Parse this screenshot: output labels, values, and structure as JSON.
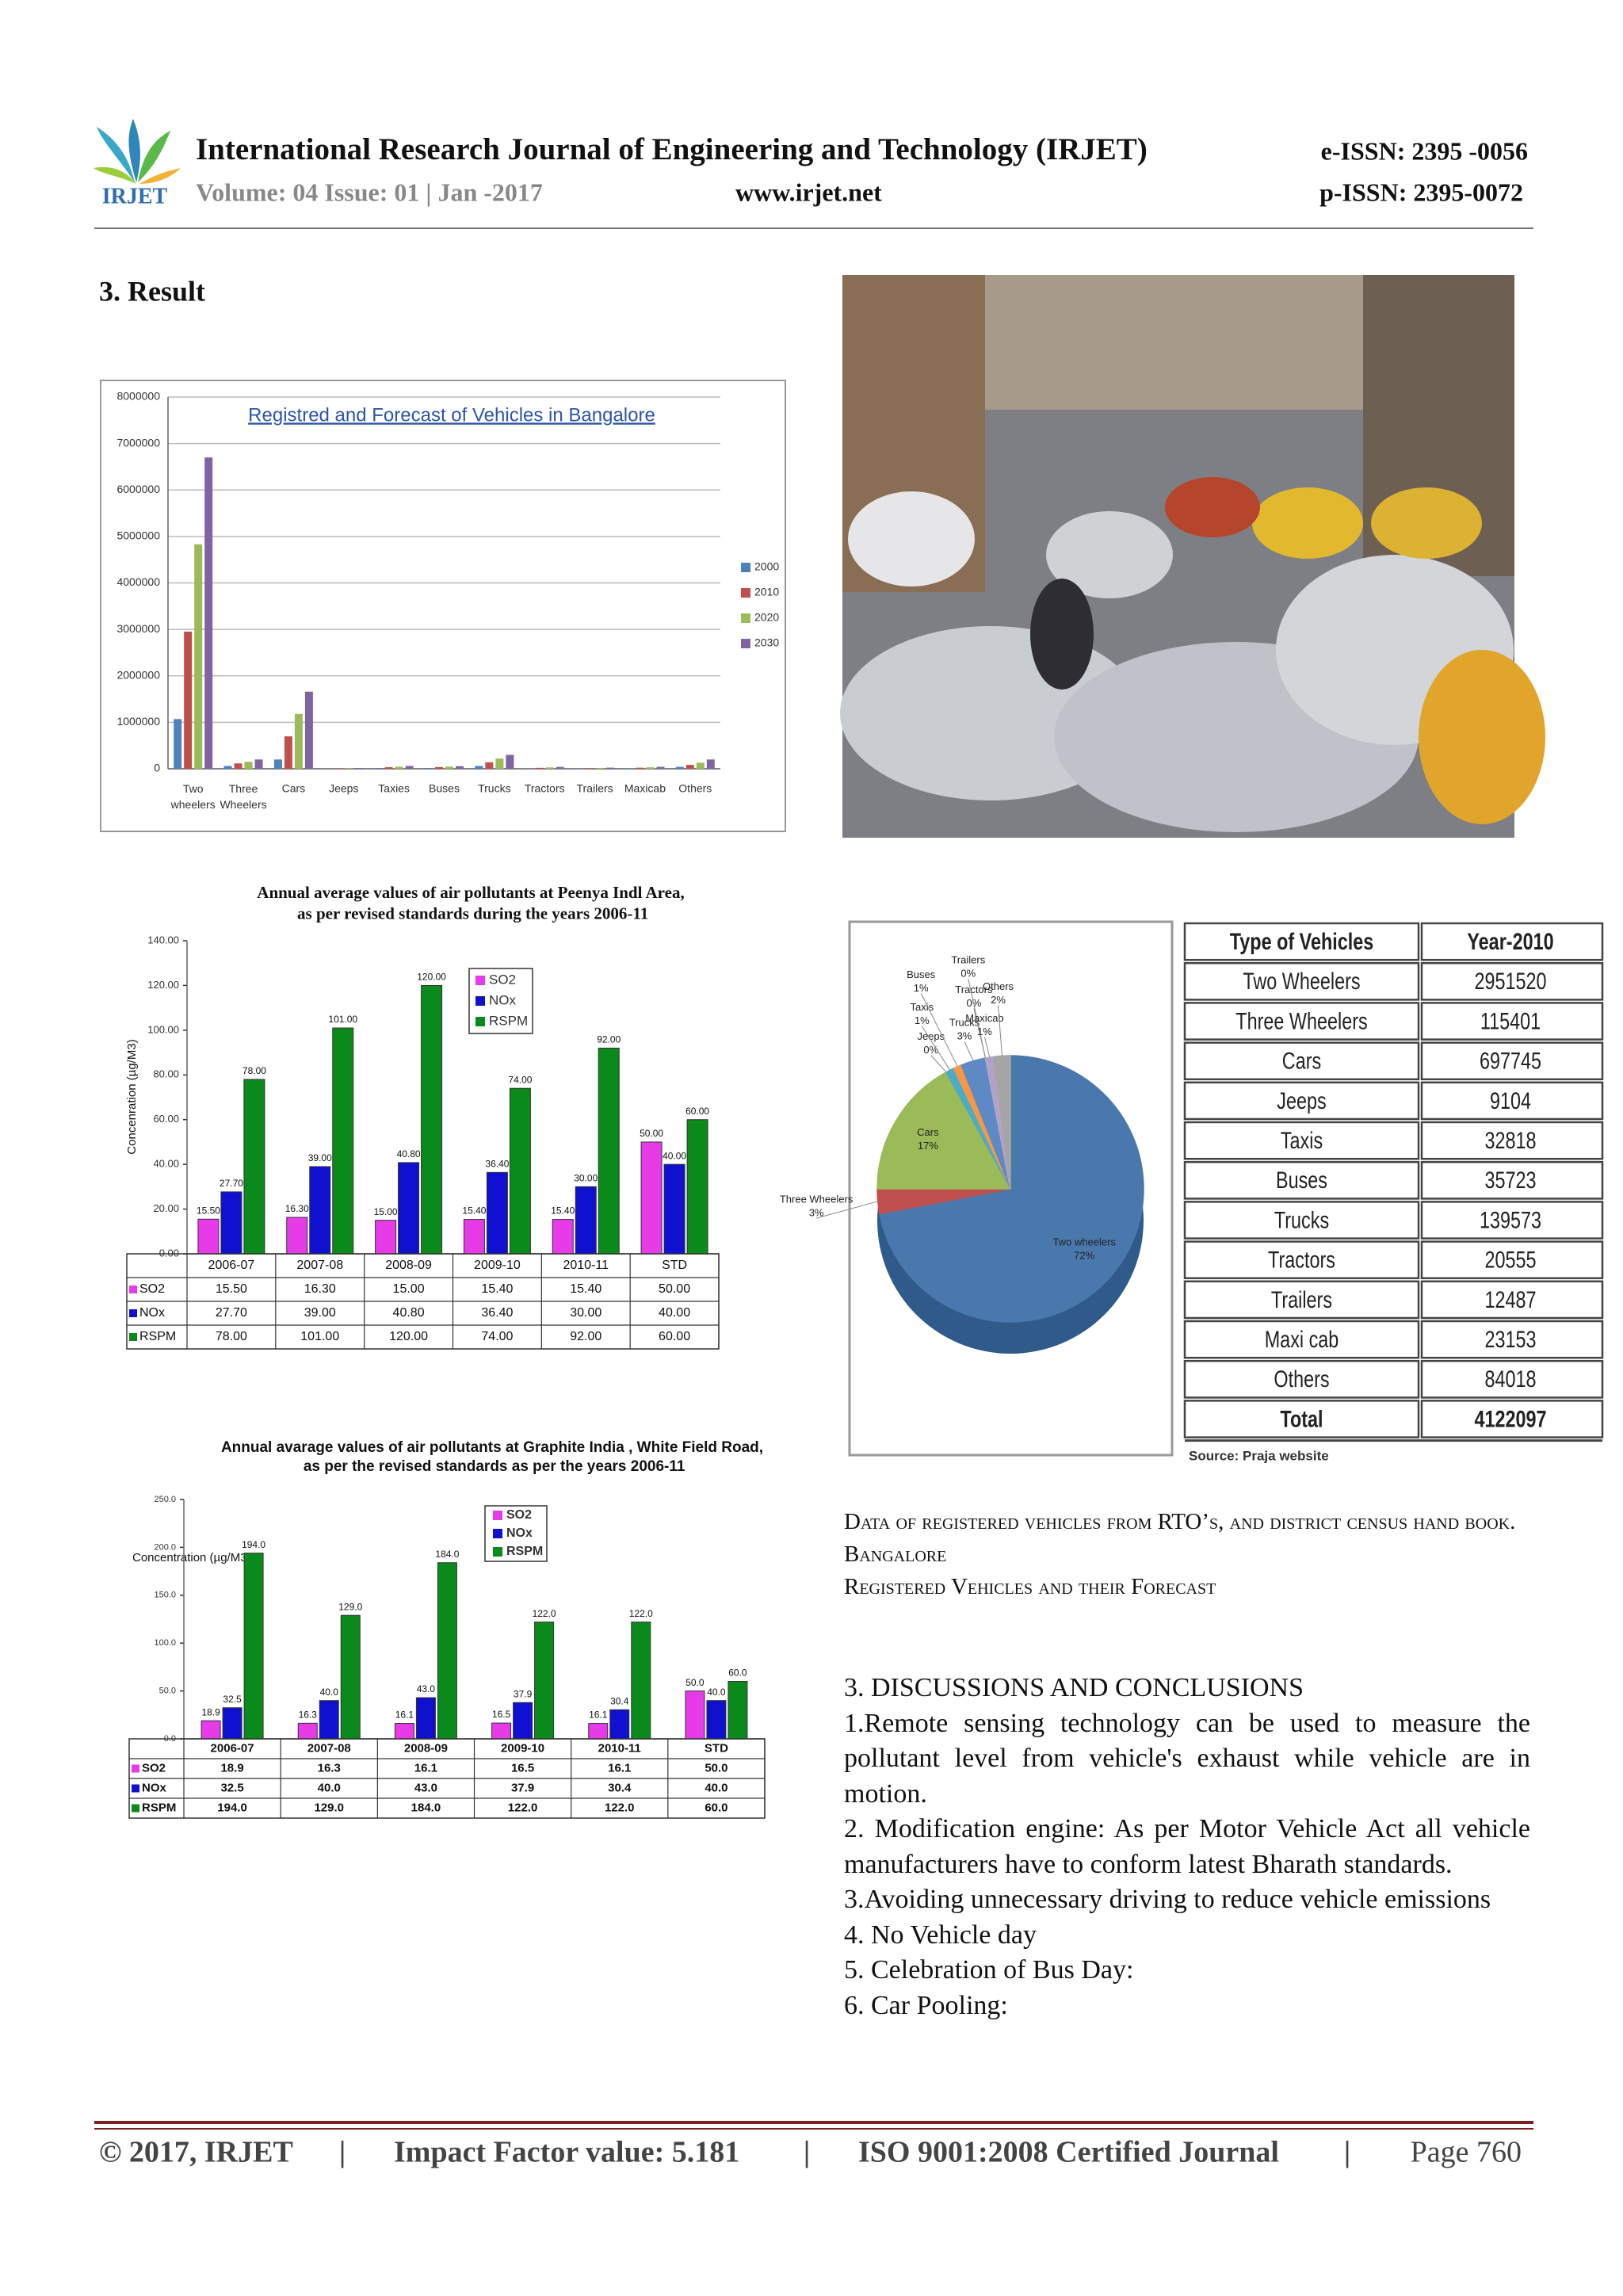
{
  "header": {
    "logo": "IRJET",
    "journal": "International Research Journal of Engineering and Technology (IRJET)",
    "eissn": "e-ISSN: 2395 -0056",
    "volume": "Volume: 04 Issue: 01 | Jan -2017",
    "url": "www.irjet.net",
    "pissn": "p-ISSN: 2395-0072"
  },
  "section": "3. Result",
  "chart_data": [
    {
      "type": "bar",
      "title": "Registred and Forecast of Vehicles in Bangalore",
      "categories": [
        "Two wheelers",
        "Three Wheelers",
        "Cars",
        "Jeeps",
        "Taxies",
        "Buses",
        "Trucks",
        "Tractors",
        "Trailers",
        "Maxicab",
        "Others"
      ],
      "series": [
        {
          "name": "2000",
          "color": "#4f81bd",
          "values": [
            1070000,
            60000,
            200000,
            3000,
            15000,
            15000,
            60000,
            10000,
            6000,
            10000,
            40000
          ]
        },
        {
          "name": "2010",
          "color": "#c0504d",
          "values": [
            2951520,
            115401,
            697745,
            9104,
            32818,
            35723,
            139573,
            20555,
            12487,
            23153,
            84018
          ]
        },
        {
          "name": "2020",
          "color": "#9bbb59",
          "values": [
            4830000,
            150000,
            1180000,
            12000,
            45000,
            45000,
            220000,
            30000,
            18000,
            32000,
            130000
          ]
        },
        {
          "name": "2030",
          "color": "#8064a2",
          "values": [
            6700000,
            200000,
            1660000,
            15000,
            60000,
            55000,
            300000,
            40000,
            24000,
            42000,
            200000
          ]
        }
      ],
      "ylim": [
        0,
        8000000
      ],
      "yticks": [
        0,
        1000000,
        2000000,
        3000000,
        4000000,
        5000000,
        6000000,
        7000000,
        8000000
      ],
      "grid": true,
      "legend": "right"
    },
    {
      "type": "bar",
      "title": "Annual average values of air pollutants at Peenya Indl Area, as per revised standards during the years  2006-11",
      "ylabel": "Concenration (µg/M3)",
      "categories": [
        "2006-07",
        "2007-08",
        "2008-09",
        "2009-10",
        "2010-11",
        "STD"
      ],
      "series": [
        {
          "name": "SO2",
          "color": "#e63be6",
          "values": [
            15.5,
            16.3,
            15,
            15.4,
            15.4,
            50
          ],
          "value_labels": [
            "15.50",
            "16.30",
            "15.00",
            "15.40",
            "15.40",
            "50.00"
          ]
        },
        {
          "name": "NOx",
          "color": "#1010d0",
          "values": [
            27.7,
            39,
            40.8,
            36.4,
            30,
            40
          ],
          "value_labels": [
            "27.70",
            "39.00",
            "40.80",
            "36.40",
            "30.00",
            "40.00"
          ]
        },
        {
          "name": "RSPM",
          "color": "#0a8a1a",
          "values": [
            78,
            101,
            120,
            74,
            92,
            60
          ],
          "value_labels": [
            "78.00",
            "101.00",
            "120.00",
            "74.00",
            "92.00",
            "60.00"
          ]
        }
      ],
      "ylim": [
        0,
        140
      ],
      "yticks": [
        {
          "value": 0,
          "label": "0.00"
        },
        {
          "value": 20,
          "label": "20.00"
        },
        {
          "value": 40,
          "label": "40.00"
        },
        {
          "value": 60,
          "label": "60.00"
        },
        {
          "value": 80,
          "label": "80.00"
        },
        {
          "value": 100,
          "label": "100.00"
        },
        {
          "value": 120,
          "label": "120.00"
        },
        {
          "value": 140,
          "label": "140.00"
        }
      ],
      "grid": false,
      "legend": "upper center",
      "data_table": true
    },
    {
      "type": "bar",
      "title": "Annual avarage values of air pollutants at Graphite India , White Field Road, as per the revised standards as per the years 2006-11",
      "ylabel": "Concentration (µg/M3)",
      "categories": [
        "2006-07",
        "2007-08",
        "2008-09",
        "2009-10",
        "2010-11",
        "STD"
      ],
      "series": [
        {
          "name": "SO2",
          "color": "#e63be6",
          "values": [
            18.9,
            16.3,
            16.1,
            16.5,
            16.1,
            50
          ],
          "value_labels": [
            "18.9",
            "16.3",
            "16.1",
            "16.5",
            "16.1",
            "50.0"
          ]
        },
        {
          "name": "NOx",
          "color": "#1010d0",
          "values": [
            32.5,
            40,
            43,
            37.9,
            30.4,
            40
          ],
          "value_labels": [
            "32.5",
            "40.0",
            "43.0",
            "37.9",
            "30.4",
            "40.0"
          ]
        },
        {
          "name": "RSPM",
          "color": "#0a8a1a",
          "values": [
            194,
            129,
            184,
            122,
            122,
            60
          ],
          "value_labels": [
            "194.0",
            "129.0",
            "184.0",
            "122.0",
            "122.0",
            "60.0"
          ]
        }
      ],
      "ylim": [
        0,
        250
      ],
      "yticks": [
        {
          "value": 0,
          "label": "0.0"
        },
        {
          "value": 50,
          "label": "50.0"
        },
        {
          "value": 100,
          "label": "100.0"
        },
        {
          "value": 150,
          "label": "150.0"
        },
        {
          "value": 200,
          "label": "200.0"
        },
        {
          "value": 250,
          "label": "250.0"
        }
      ],
      "grid": false,
      "legend": "upper center",
      "data_table": true
    },
    {
      "type": "pie",
      "categories": [
        "Two wheelers",
        "Three Wheelers",
        "Cars",
        "Jeeps",
        "Taxis",
        "Buses",
        "Trucks",
        "Tractors",
        "Trailers",
        "Maxicab",
        "Others"
      ],
      "values": [
        72,
        3,
        17,
        0,
        1,
        1,
        3,
        0,
        0,
        1,
        2
      ],
      "value_labels": [
        "72%",
        "3%",
        "17%",
        "0%",
        "1%",
        "1%",
        "3%",
        "0%",
        "0%",
        "1%",
        "2%"
      ],
      "colors": [
        "#4a78ad",
        "#c0504d",
        "#9bbb59",
        "#8064a2",
        "#4bacc6",
        "#f79646",
        "#5d8ac4",
        "#d99694",
        "#c3d69b",
        "#b3a2c7",
        "#a5a5a5"
      ]
    }
  ],
  "vehicle_table": {
    "header": [
      "Type of Vehicles",
      "Year-2010"
    ],
    "rows": [
      [
        "Two Wheelers",
        "2951520"
      ],
      [
        "Three Wheelers",
        "115401"
      ],
      [
        "Cars",
        "697745"
      ],
      [
        "Jeeps",
        "9104"
      ],
      [
        "Taxis",
        "32818"
      ],
      [
        "Buses",
        "35723"
      ],
      [
        "Trucks",
        "139573"
      ],
      [
        "Tractors",
        "20555"
      ],
      [
        "Trailers",
        "12487"
      ],
      [
        "Maxi cab",
        "23153"
      ],
      [
        "Others",
        "84018"
      ]
    ],
    "total": [
      "Total",
      "4122097"
    ],
    "source": "Source: Praja website"
  },
  "captions": [
    "Data of registered vehicles from RTO’s, and district census hand book. Bangalore",
    "Registered Vehicles and their Forecast"
  ],
  "discussion": {
    "title": "3. DISCUSSIONS AND CONCLUSIONS",
    "items": [
      "1.Remote sensing technology can be used to measure the pollutant level from vehicle's exhaust while vehicle are in motion.",
      "2. Modification engine: As per Motor Vehicle Act all vehicle manufacturers have to conform latest Bharath standards.",
      "3.Avoiding unnecessary driving to reduce vehicle emissions",
      "4. No Vehicle day",
      "5. Celebration of Bus Day:",
      "6. Car Pooling:"
    ]
  },
  "footer": [
    "© 2017, IRJET",
    "Impact Factor value: 5.181",
    "ISO 9001:2008 Certified Journal",
    "Page 760"
  ]
}
